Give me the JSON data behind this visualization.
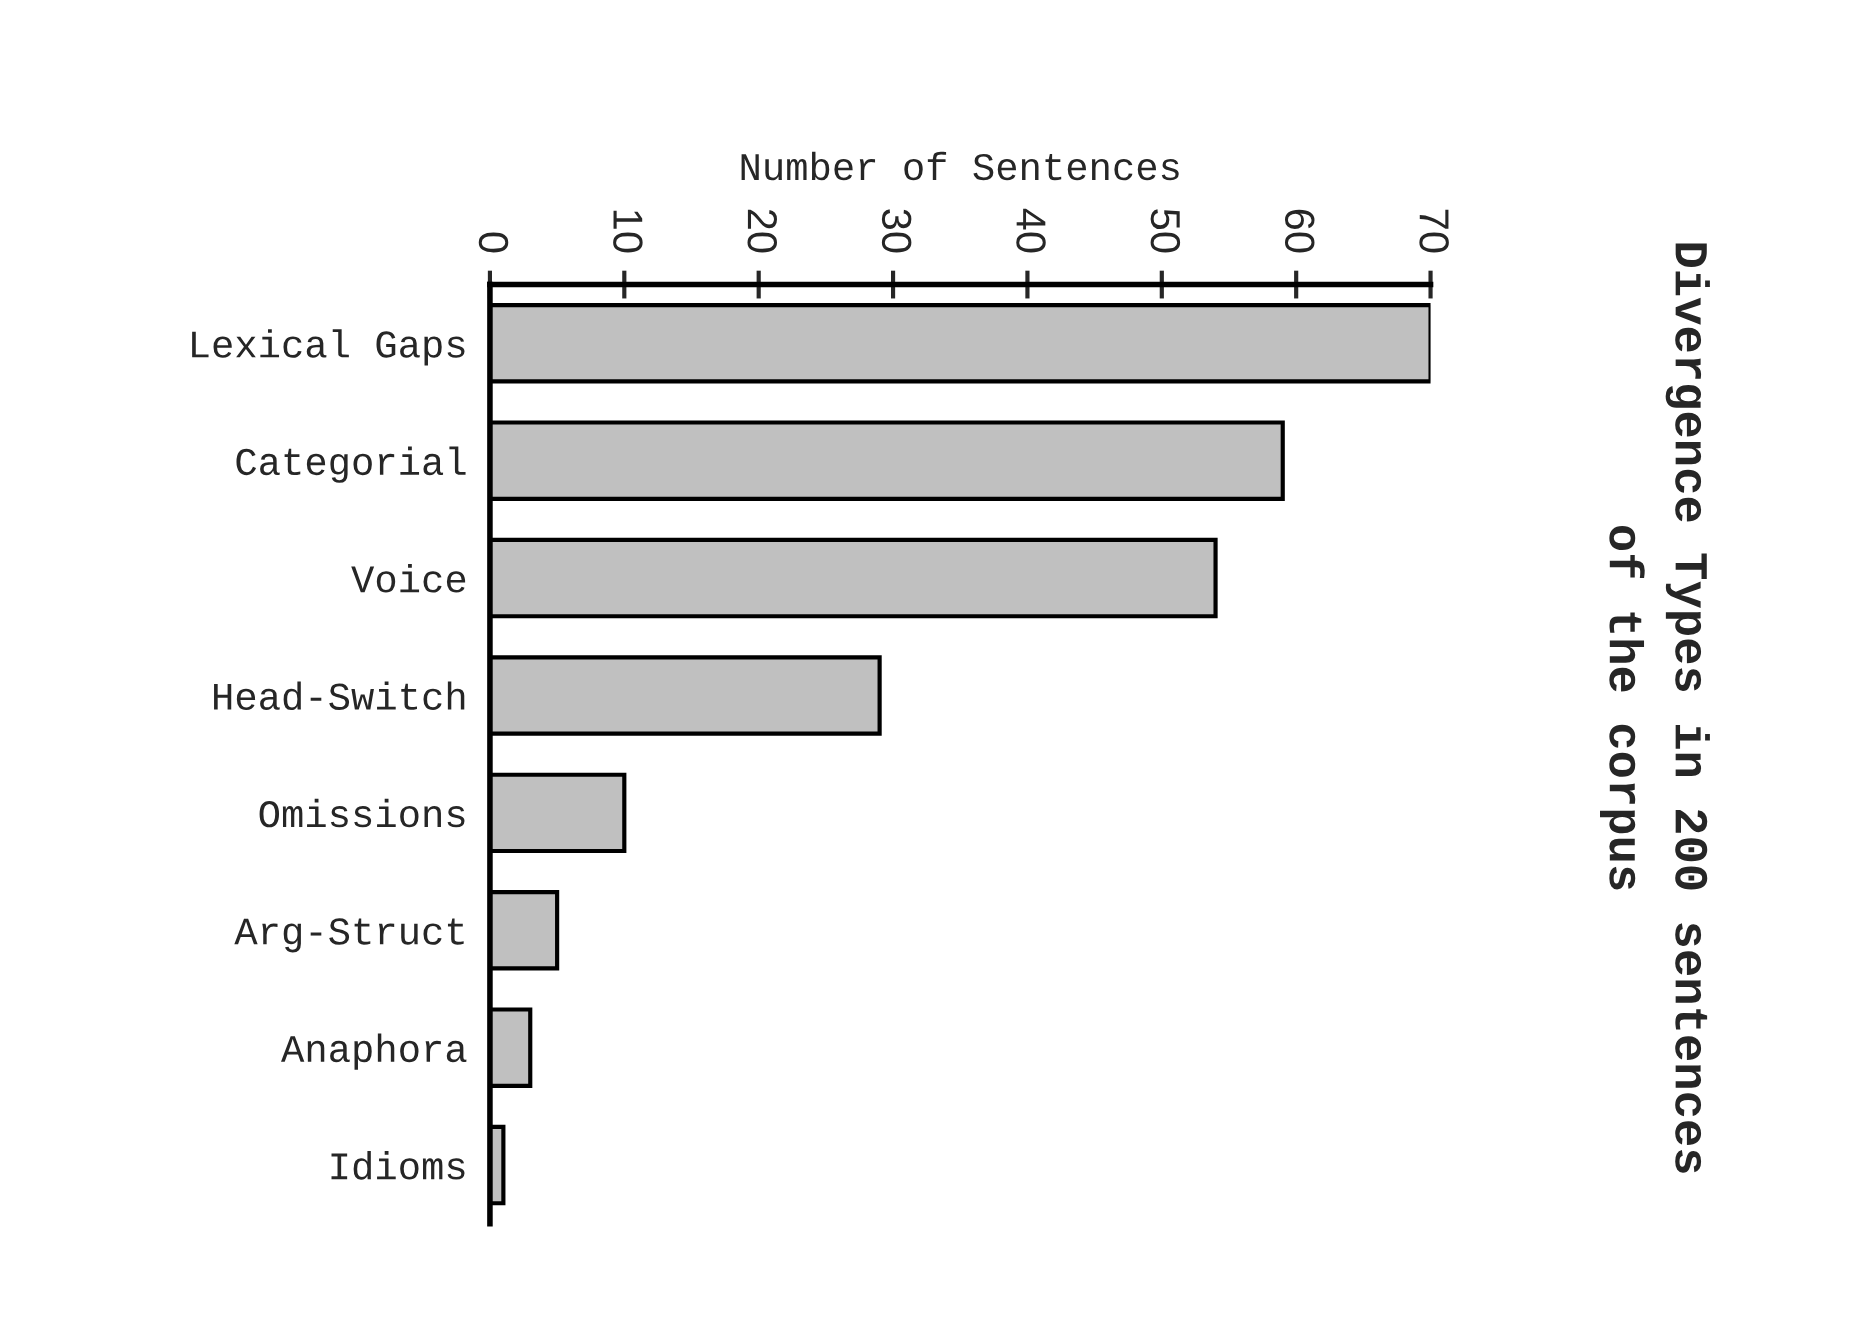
{
  "chart_data": {
    "type": "bar",
    "orientation": "horizontal",
    "title": "Divergence Types in 200 sentences\nof the corpus",
    "xlabel": "Number of Sentences",
    "categories": [
      "Lexical Gaps",
      "Categorial",
      "Voice",
      "Head-Switch",
      "Omissions",
      "Arg-Struct",
      "Anaphora",
      "Idioms"
    ],
    "values": [
      70,
      59,
      54,
      29,
      10,
      5,
      3,
      1
    ],
    "color": "#c0c0c0",
    "xlim": [
      0,
      70
    ],
    "xticks": [
      0,
      10,
      20,
      30,
      40,
      50,
      60,
      70
    ],
    "grid": false,
    "legend": false
  }
}
